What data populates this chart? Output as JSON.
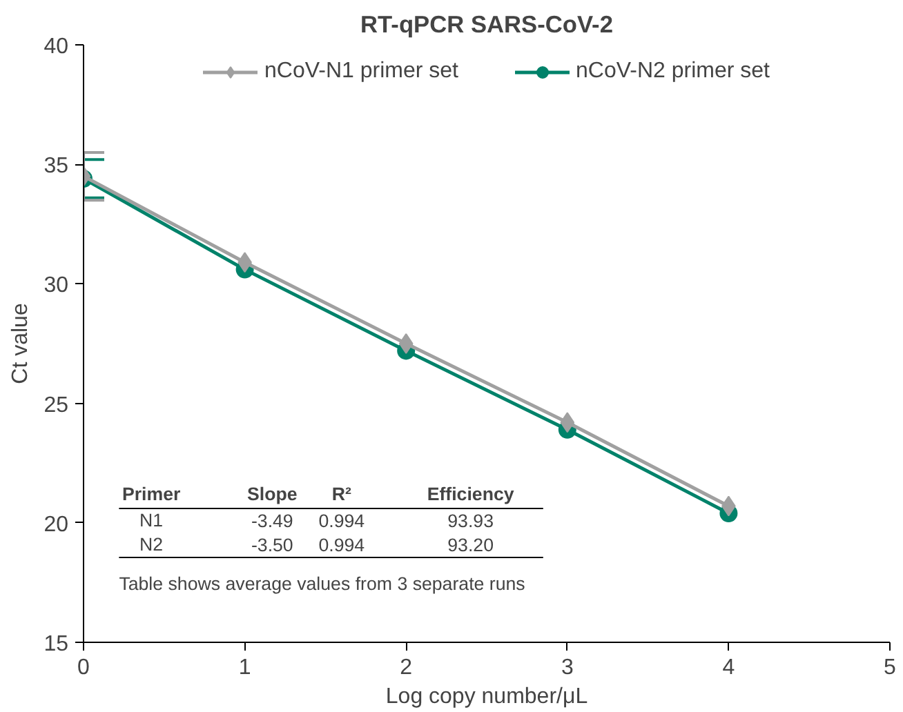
{
  "chart_data": {
    "type": "line",
    "title": "RT-qPCR SARS-CoV-2",
    "xlabel": "Log copy number/μL",
    "ylabel": "Ct value",
    "x": [
      0,
      1,
      2,
      3,
      4
    ],
    "series": [
      {
        "name": "nCoV-N1 primer set",
        "color": "#a0a0a0",
        "marker": "diamond",
        "values": [
          34.5,
          30.9,
          27.5,
          24.2,
          20.7
        ],
        "errors": [
          1.0,
          null,
          null,
          null,
          null
        ]
      },
      {
        "name": "nCoV-N2 primer set",
        "color": "#00826a",
        "marker": "circle",
        "values": [
          34.4,
          30.6,
          27.2,
          23.9,
          20.4
        ],
        "errors": [
          0.8,
          null,
          null,
          null,
          null
        ]
      }
    ],
    "xlim": [
      0,
      5
    ],
    "xticks": [
      0,
      1,
      2,
      3,
      4,
      5
    ],
    "ylim": [
      15,
      40
    ],
    "yticks": [
      15,
      20,
      25,
      30,
      35,
      40
    ],
    "grid": false,
    "legend": "top",
    "line_style": "solid",
    "annotations": [
      "Primer",
      "Slope",
      "R²",
      "Efficiency",
      "N1",
      "-3.49",
      "0.994",
      "93.93",
      "N2",
      "-3.50",
      "0.994",
      "93.20",
      "Table shows average values from 3 separate runs"
    ]
  }
}
